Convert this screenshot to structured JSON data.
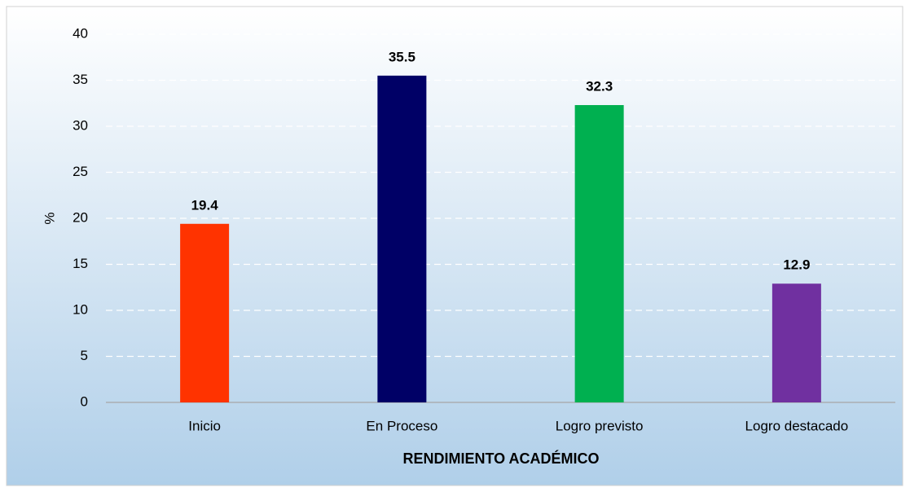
{
  "chart_data": {
    "type": "bar",
    "categories": [
      "Inicio",
      "En Proceso",
      "Logro previsto",
      "Logro destacado"
    ],
    "values": [
      19.4,
      35.5,
      32.3,
      12.9
    ],
    "colors": [
      "#ff3300",
      "#000066",
      "#00b050",
      "#7030a0"
    ],
    "ylabel": "%",
    "xlabel": "RENDIMIENTO ACADÉMICO",
    "ylim": [
      0,
      40
    ],
    "yticks": [
      0,
      5,
      10,
      15,
      20,
      25,
      30,
      35,
      40
    ],
    "grid": true
  }
}
